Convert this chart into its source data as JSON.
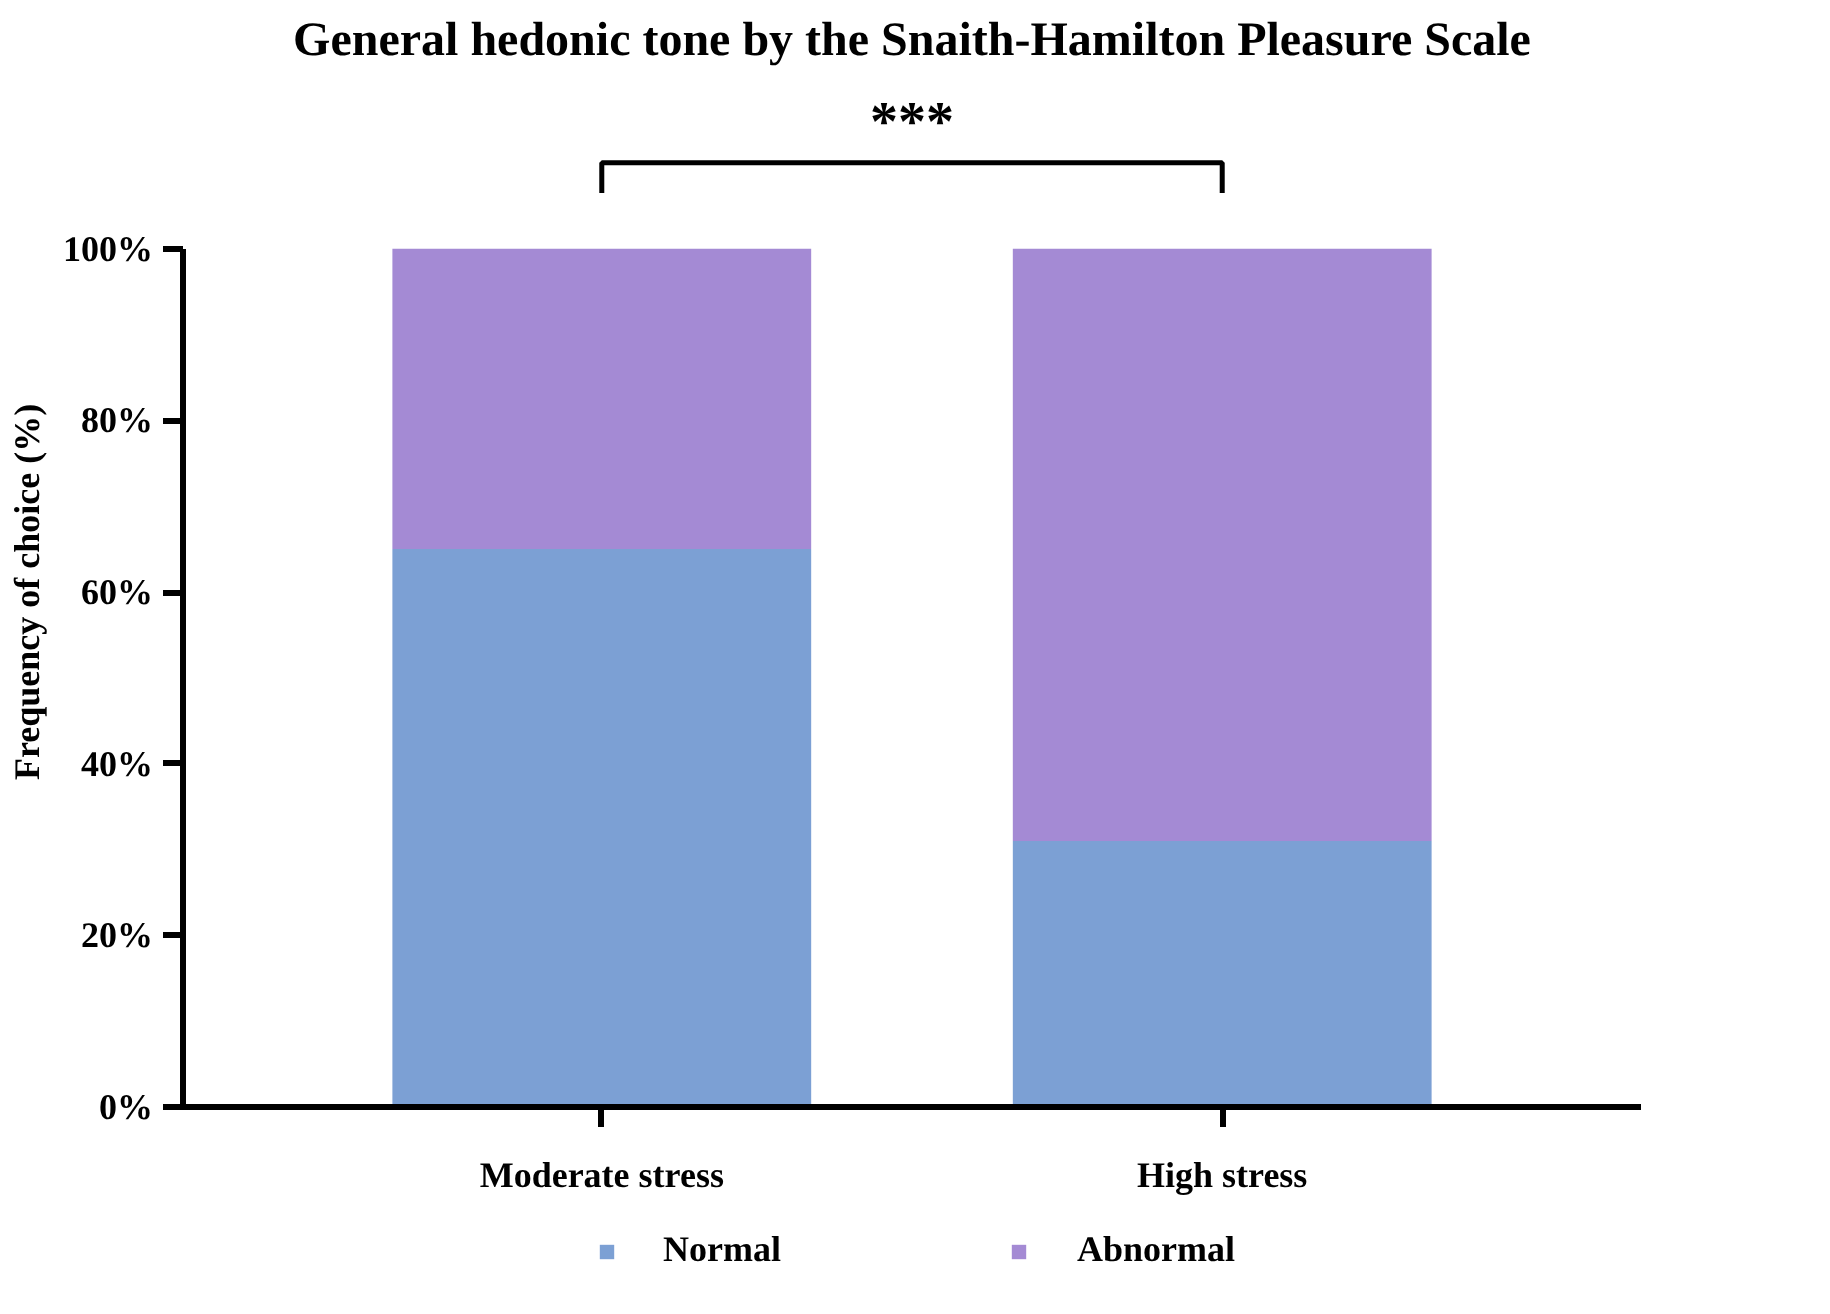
{
  "chart_data": {
    "type": "bar",
    "stacked": true,
    "title": "General hedonic tone by the Snaith-Hamilton Pleasure Scale",
    "ylabel": "Frequency of choice (%)",
    "categories": [
      "Moderate stress",
      "High stress"
    ],
    "series": [
      {
        "name": "Normal",
        "color": "#7ca0d4",
        "values": [
          65,
          31
        ]
      },
      {
        "name": "Abnormal",
        "color": "#a48ad4",
        "values": [
          35,
          69
        ]
      }
    ],
    "ylim": [
      0,
      100
    ],
    "yticks": [
      {
        "value": 0,
        "label": "0%"
      },
      {
        "value": 20,
        "label": "20%"
      },
      {
        "value": 40,
        "label": "40%"
      },
      {
        "value": 60,
        "label": "60%"
      },
      {
        "value": 80,
        "label": "80%"
      },
      {
        "value": 100,
        "label": "100%"
      }
    ],
    "annotations": [
      "***"
    ],
    "legend": "bottom",
    "grid": false
  }
}
